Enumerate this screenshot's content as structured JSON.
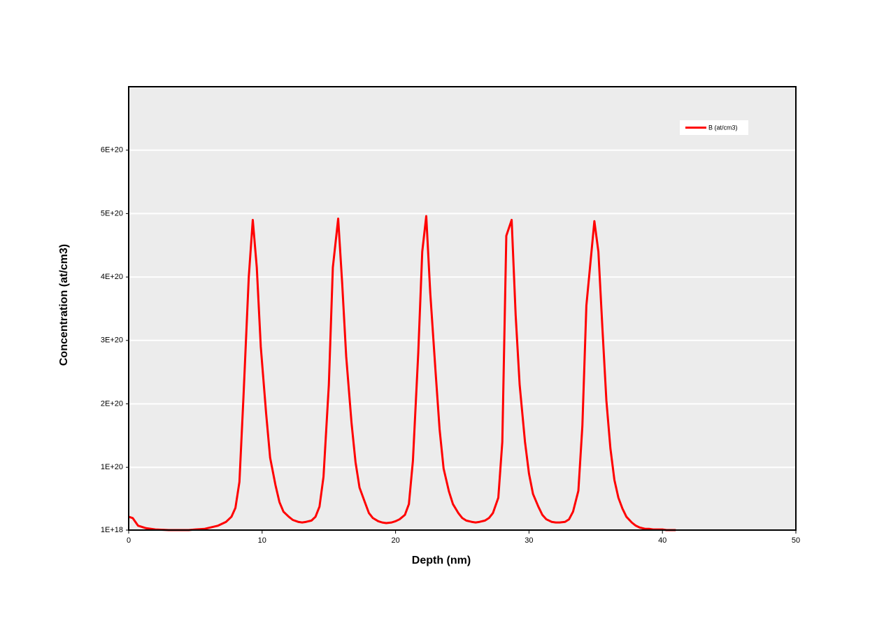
{
  "chart_data": {
    "type": "line",
    "xlabel": "Depth (nm)",
    "ylabel": "Concentration (at/cm3)",
    "x": [
      0,
      0.3,
      0.7,
      1.3,
      2,
      3,
      4.5,
      5,
      5.7,
      6.7,
      7.3,
      7.7,
      8.0,
      8.3,
      8.6,
      9.0,
      9.3,
      9.6,
      9.9,
      10.3,
      10.6,
      11.0,
      11.3,
      11.6,
      12.0,
      12.3,
      12.7,
      13.0,
      13.3,
      13.7,
      14.0,
      14.3,
      14.6,
      15.0,
      15.3,
      15.7,
      16.0,
      16.3,
      16.7,
      17.0,
      17.3,
      17.7,
      18.0,
      18.3,
      18.7,
      19.0,
      19.3,
      19.7,
      20.0,
      20.3,
      20.7,
      21.0,
      21.3,
      21.7,
      22.0,
      22.3,
      22.6,
      23.0,
      23.3,
      23.6,
      24.0,
      24.3,
      24.7,
      25.0,
      25.3,
      25.7,
      26.0,
      26.3,
      26.7,
      27.0,
      27.3,
      27.7,
      28.0,
      28.3,
      28.7,
      29.0,
      29.3,
      29.7,
      30.0,
      30.3,
      30.7,
      31.0,
      31.3,
      31.7,
      32.0,
      32.3,
      32.7,
      33.0,
      33.3,
      33.7,
      34.0,
      34.3,
      34.9,
      35.2,
      35.5,
      35.8,
      36.1,
      36.4,
      36.7,
      37.0,
      37.3,
      37.7,
      38.0,
      38.3,
      38.7,
      39.0,
      39.3,
      40.0,
      40.3,
      41.0
    ],
    "series": [
      {
        "name": "B (at/cm3)",
        "color": "#ff0000",
        "values": [
          2.2e+19,
          2e+19,
          8e+18,
          4e+18,
          2e+18,
          1e+18,
          1e+18,
          2e+18,
          3e+18,
          8e+18,
          1.4e+19,
          2.2e+19,
          3.6e+19,
          7.7e+19,
          2.1e+20,
          4e+20,
          4.9e+20,
          4.15e+20,
          2.9e+20,
          1.85e+20,
          1.15e+20,
          7.2e+19,
          4.5e+19,
          3e+19,
          2.2e+19,
          1.7e+19,
          1.4e+19,
          1.3e+19,
          1.4e+19,
          1.6e+19,
          2.2e+19,
          3.8e+19,
          8.5e+19,
          2.3e+20,
          4.15e+20,
          4.92e+20,
          3.9e+20,
          2.75e+20,
          1.7e+20,
          1.08e+20,
          6.8e+19,
          4.5e+19,
          2.8e+19,
          2e+19,
          1.5e+19,
          1.3e+19,
          1.2e+19,
          1.3e+19,
          1.5e+19,
          1.8e+19,
          2.5e+19,
          4.2e+19,
          1.1e+20,
          2.8e+20,
          4.4e+20,
          4.96e+20,
          3.75e+20,
          2.5e+20,
          1.6e+20,
          9.8e+19,
          6.2e+19,
          4.2e+19,
          2.8e+19,
          2e+19,
          1.6e+19,
          1.4e+19,
          1.3e+19,
          1.4e+19,
          1.6e+19,
          2e+19,
          2.8e+19,
          5.2e+19,
          1.4e+20,
          4.65e+20,
          4.9e+20,
          3.4e+20,
          2.3e+20,
          1.4e+20,
          9e+19,
          5.8e+19,
          3.8e+19,
          2.5e+19,
          1.8e+19,
          1.4e+19,
          1.3e+19,
          1.3e+19,
          1.4e+19,
          1.8e+19,
          3e+19,
          6.3e+19,
          1.65e+20,
          3.55e+20,
          4.88e+20,
          4.4e+20,
          3.2e+20,
          2.05e+20,
          1.3e+20,
          8e+19,
          5.2e+19,
          3.5e+19,
          2.2e+19,
          1.3e+19,
          8e+18,
          5e+18,
          3e+18,
          3e+18,
          2e+18,
          2e+18,
          1e+18,
          1e+18
        ]
      }
    ],
    "xlim": [
      0,
      50
    ],
    "xticks": [
      0,
      10,
      20,
      30,
      40,
      50
    ],
    "ylim": [
      1e+18,
      7e+20
    ],
    "yticks": [
      {
        "value": 1e+18,
        "label": "1E+18"
      },
      {
        "value": 1e+20,
        "label": "1E+20"
      },
      {
        "value": 2e+20,
        "label": "2E+20"
      },
      {
        "value": 3e+20,
        "label": "3E+20"
      },
      {
        "value": 4e+20,
        "label": "4E+20"
      },
      {
        "value": 5e+20,
        "label": "5E+20"
      },
      {
        "value": 6e+20,
        "label": "6E+20"
      }
    ],
    "grid": true,
    "legend": "upper right"
  }
}
